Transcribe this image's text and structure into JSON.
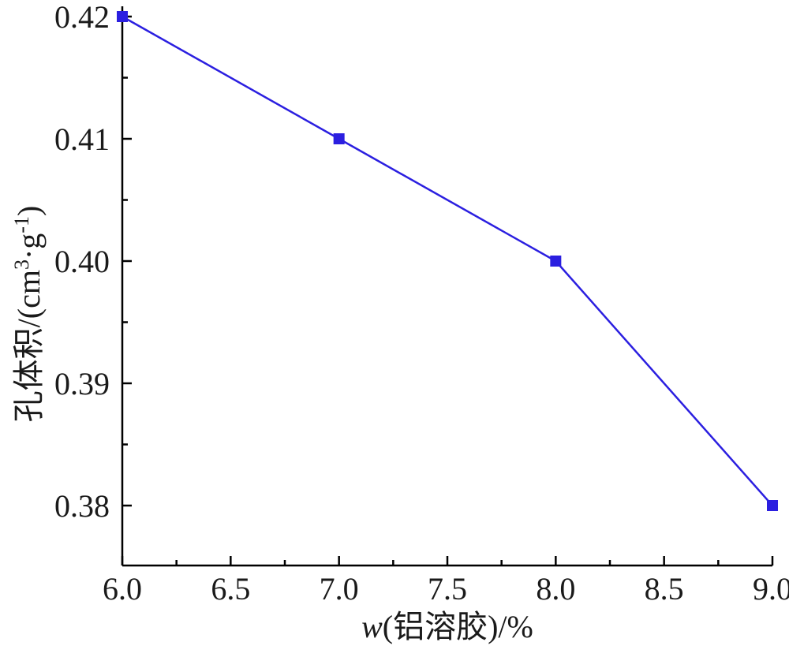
{
  "chart_data": {
    "type": "line",
    "xlabel_prefix": "w",
    "xlabel_rest": "(铝溶胶)/%",
    "ylabel_text": "孔体积/(cm",
    "ylabel_sup1": "3",
    "ylabel_mid": "·g",
    "ylabel_sup2": "-1",
    "ylabel_end": ")",
    "xlim": [
      6.0,
      9.0
    ],
    "ylim": [
      0.375,
      0.42
    ],
    "x_ticks": [
      "6.0",
      "6.5",
      "7.0",
      "7.5",
      "8.0",
      "8.5",
      "9.0"
    ],
    "y_ticks": [
      "0.38",
      "0.39",
      "0.40",
      "0.41",
      "0.42"
    ],
    "series": [
      {
        "x": [
          6.0,
          7.0,
          8.0,
          9.0
        ],
        "y": [
          0.42,
          0.41,
          0.4,
          0.38
        ]
      }
    ],
    "color": "#2b1fe0",
    "grid": false,
    "marker": "square"
  }
}
